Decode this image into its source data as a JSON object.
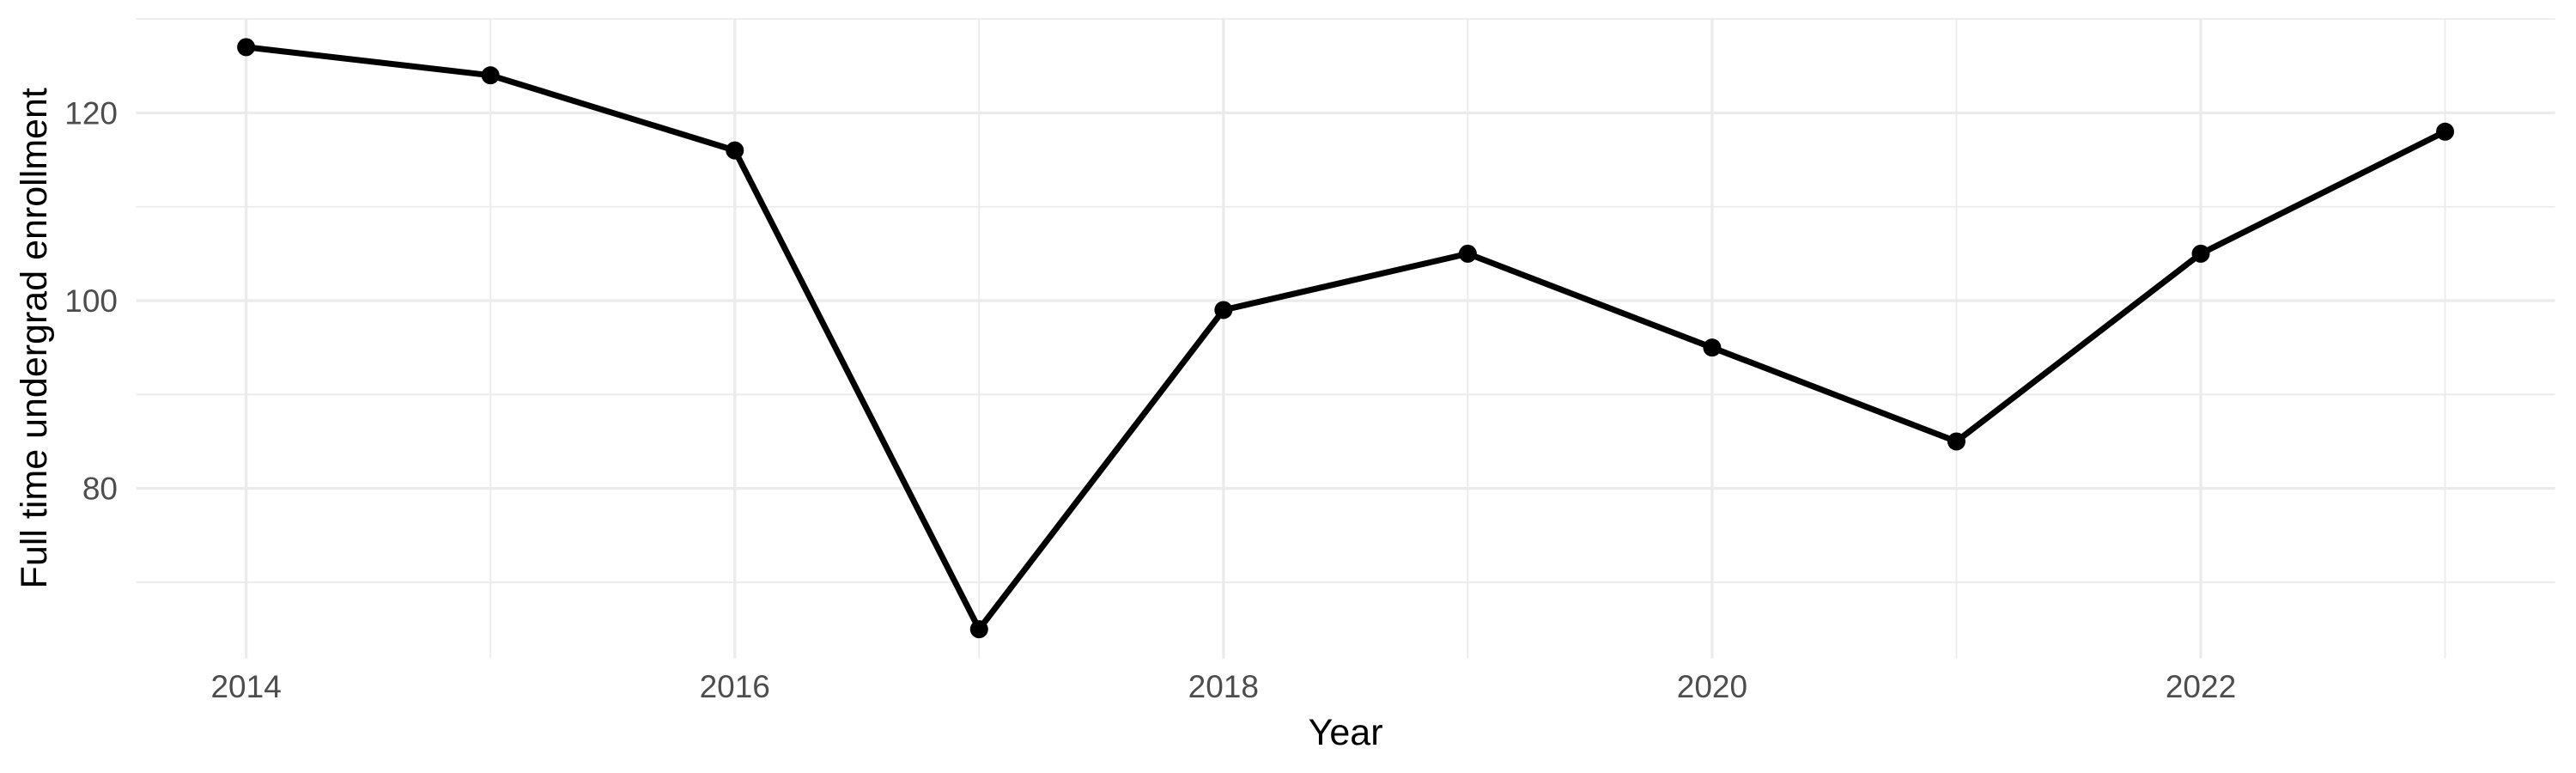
{
  "figure": {
    "x_axis_title": "Year",
    "y_axis_title": "Full time undergrad enrollment"
  },
  "chart_data": {
    "type": "line",
    "title": "",
    "xlabel": "Year",
    "ylabel": "Full time undergrad enrollment",
    "x": [
      2014,
      2015,
      2016,
      2017,
      2018,
      2019,
      2020,
      2021,
      2022,
      2023
    ],
    "series": [
      {
        "name": "Full time undergrad enrollment",
        "values": [
          127,
          124,
          116,
          65,
          99,
          105,
          95,
          85,
          105,
          118
        ]
      }
    ],
    "x_major_ticks": [
      2014,
      2016,
      2018,
      2020,
      2022
    ],
    "x_minor_gridlines": [
      2015,
      2017,
      2019,
      2021,
      2023
    ],
    "y_major_ticks": [
      80,
      100,
      120
    ],
    "y_minor_gridlines": [
      70,
      90,
      110,
      130
    ],
    "xlim": [
      2013.55,
      2023.45
    ],
    "ylim": [
      61.9,
      130.1
    ],
    "grid": "major-and-minor",
    "legend_position": "none",
    "style": {
      "background_color": "#ffffff",
      "panel_background_color": "#ffffff",
      "gridline_color": "#ebebeb",
      "line_color": "#000000",
      "point_color": "#000000",
      "tick_label_color": "#4d4d4d",
      "axis_title_color": "#000000"
    }
  }
}
